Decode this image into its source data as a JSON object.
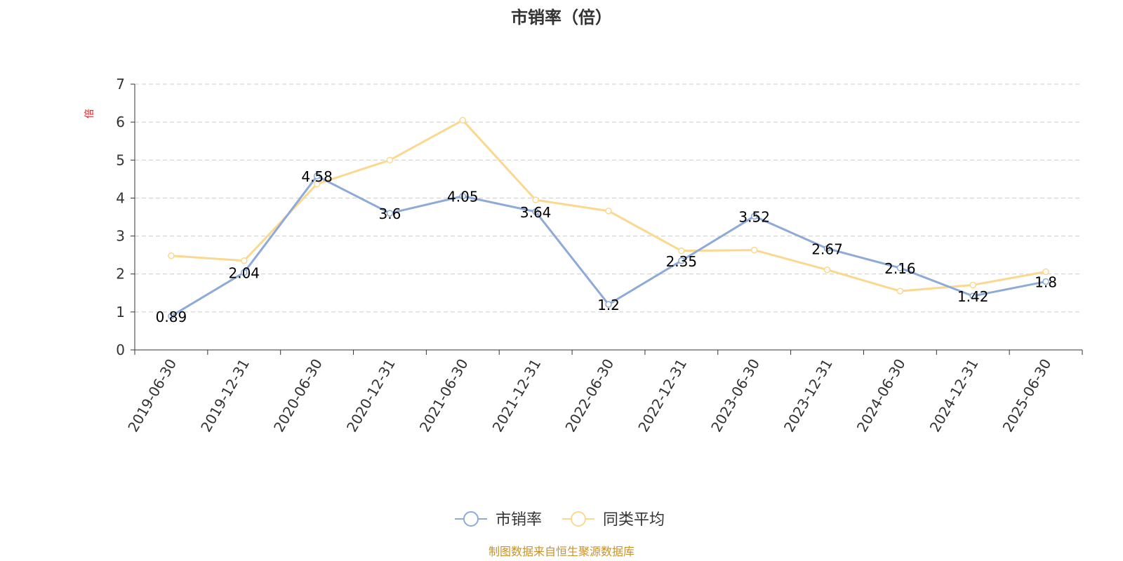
{
  "colors": {
    "series_1": "#8daad8",
    "series_2": "#fbd88f",
    "unit": "#e0181b",
    "source": "#c8922a",
    "axis": "#333333",
    "grid": "#cccccc"
  },
  "chart_data": {
    "type": "line",
    "title": "市销率（倍）",
    "ylabel": "倍",
    "ylim": [
      0,
      7
    ],
    "yticks": [
      "0",
      "1",
      "2",
      "3",
      "4",
      "5",
      "6",
      "7"
    ],
    "grid": "horizontal dashed",
    "legend_position": "bottom-center",
    "categories": [
      "2019-06-30",
      "2019-12-31",
      "2020-06-30",
      "2020-12-31",
      "2021-06-30",
      "2021-12-31",
      "2022-06-30",
      "2022-12-31",
      "2023-06-30",
      "2023-12-31",
      "2024-06-30",
      "2024-12-31",
      "2025-06-30"
    ],
    "series": [
      {
        "name": "市销率",
        "values": [
          0.89,
          2.04,
          4.58,
          3.6,
          4.05,
          3.64,
          1.2,
          2.35,
          3.52,
          2.67,
          2.16,
          1.42,
          1.8
        ],
        "data_labels": [
          "0.89",
          "2.04",
          "4.58",
          "3.6",
          "4.05",
          "3.64",
          "1.2",
          "2.35",
          "3.52",
          "2.67",
          "2.16",
          "1.42",
          "1.8"
        ]
      },
      {
        "name": "同类平均",
        "values": [
          2.48,
          2.35,
          4.37,
          5.0,
          6.05,
          3.95,
          3.66,
          2.61,
          2.63,
          2.11,
          1.55,
          1.71,
          2.06
        ]
      }
    ]
  },
  "source_text": "制图数据来自恒生聚源数据库"
}
